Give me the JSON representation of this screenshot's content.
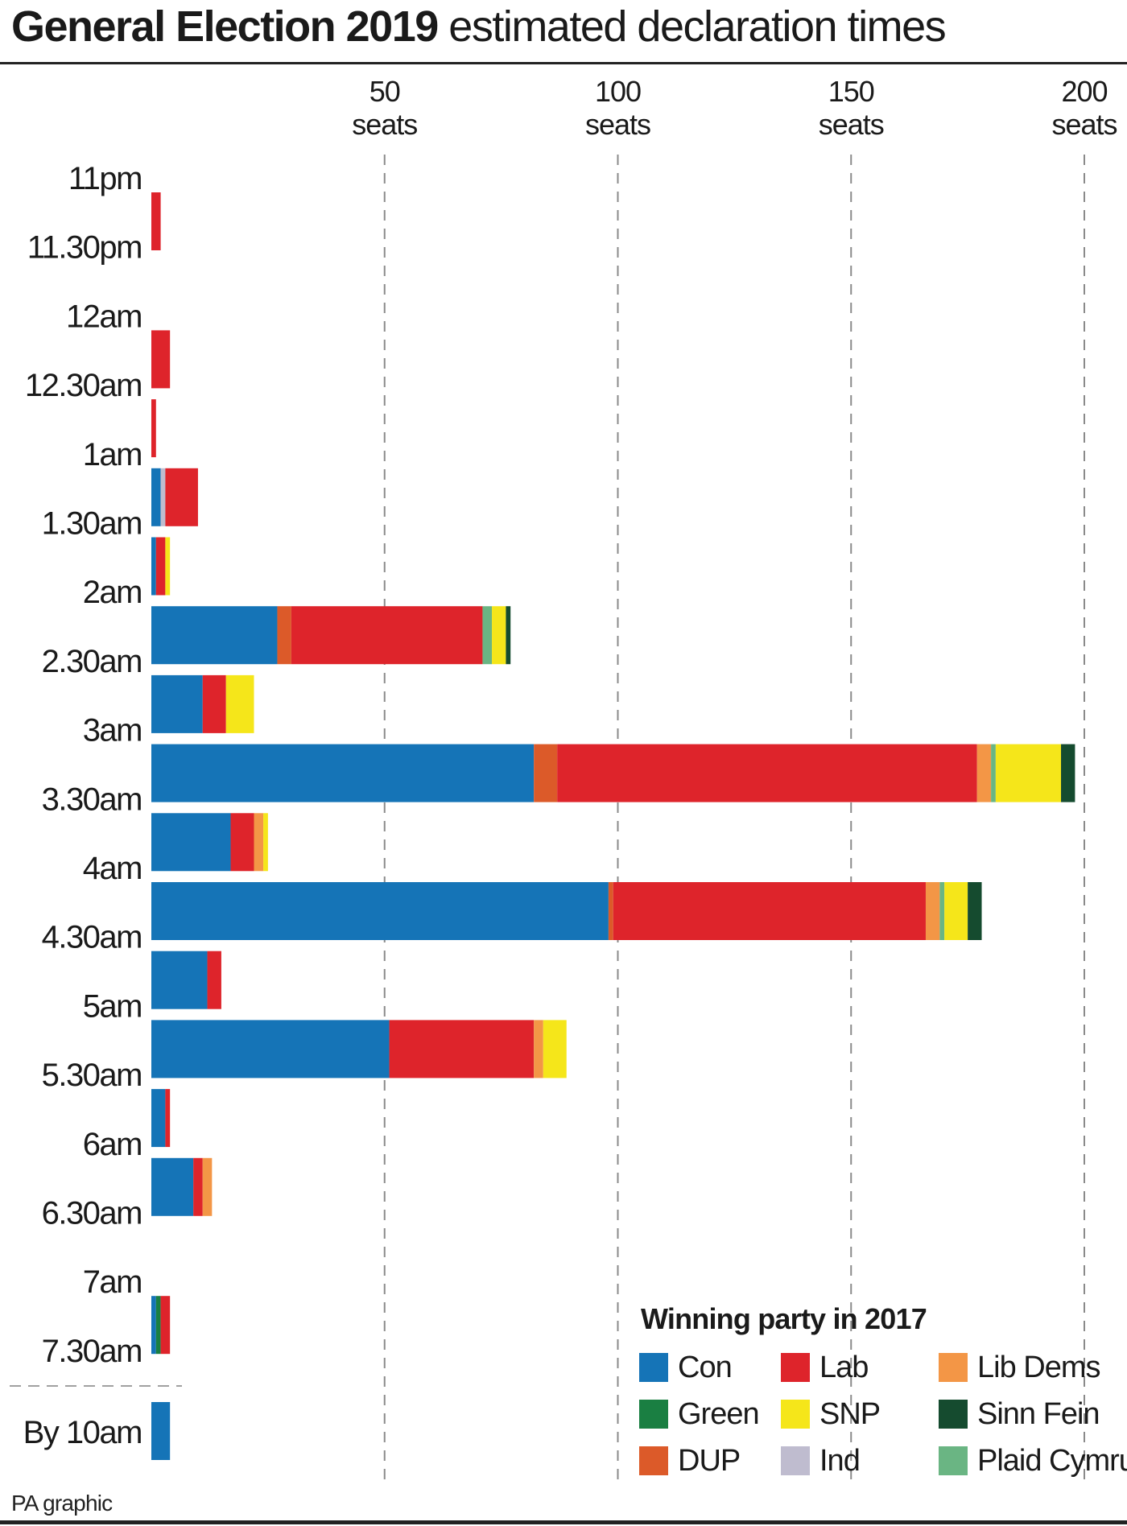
{
  "header": {
    "title_bold": "General Election 2019",
    "title_rest": "estimated declaration times"
  },
  "source": "PA graphic",
  "chart_data": {
    "type": "bar",
    "orientation": "horizontal",
    "stacked": true,
    "title": "General Election 2019 estimated declaration times",
    "xlabel": "seats",
    "xlim": [
      0,
      200
    ],
    "x_ticks": [
      {
        "value": 50,
        "line1": "50",
        "line2": "seats"
      },
      {
        "value": 100,
        "line1": "100",
        "line2": "seats"
      },
      {
        "value": 150,
        "line1": "150",
        "line2": "seats"
      },
      {
        "value": 200,
        "line1": "200",
        "line2": "seats"
      }
    ],
    "grid": "vertical dashed",
    "time_labels": [
      "11pm",
      "11.30pm",
      "12am",
      "12.30am",
      "1am",
      "1.30am",
      "2am",
      "2.30am",
      "3am",
      "3.30am",
      "4am",
      "4.30am",
      "5am",
      "5.30am",
      "6am",
      "6.30am",
      "7am",
      "7.30am"
    ],
    "final_label": "By 10am",
    "parties": [
      "Con",
      "Lab",
      "Lib Dems",
      "Green",
      "SNP",
      "Sinn Fein",
      "DUP",
      "Ind",
      "Plaid Cymru"
    ],
    "colors": {
      "Con": "#1574b7",
      "Lab": "#de242b",
      "Lib Dems": "#f39646",
      "Green": "#1a7f42",
      "SNP": "#f5e61a",
      "Sinn Fein": "#154b2f",
      "DUP": "#dc5a29",
      "Ind": "#bfbccf",
      "Plaid Cymru": "#6ab583"
    },
    "segment_order": [
      "Con",
      "Green",
      "Ind",
      "DUP",
      "Lab",
      "Lib Dems",
      "Plaid Cymru",
      "SNP",
      "Sinn Fein"
    ],
    "bars": [
      {
        "slot": "11pm-11.30pm",
        "slot_index": 0,
        "values": {
          "Lab": 2
        }
      },
      {
        "slot": "12am-12.30am",
        "slot_index": 2,
        "values": {
          "Lab": 4
        }
      },
      {
        "slot": "12.30am-1am",
        "slot_index": 3,
        "values": {
          "Lab": 1
        }
      },
      {
        "slot": "1am-1.30am",
        "slot_index": 4,
        "values": {
          "Con": 2,
          "Ind": 1,
          "Lab": 7
        }
      },
      {
        "slot": "1.30am-2am",
        "slot_index": 5,
        "values": {
          "Con": 1,
          "Lab": 2,
          "SNP": 1
        }
      },
      {
        "slot": "2am-2.30am",
        "slot_index": 6,
        "values": {
          "Con": 27,
          "DUP": 3,
          "Lab": 41,
          "Plaid Cymru": 2,
          "SNP": 3,
          "Sinn Fein": 1
        }
      },
      {
        "slot": "2.30am-3am",
        "slot_index": 7,
        "values": {
          "Con": 11,
          "Lab": 5,
          "SNP": 6
        }
      },
      {
        "slot": "3am-3.30am",
        "slot_index": 8,
        "values": {
          "Con": 82,
          "DUP": 5,
          "Lab": 90,
          "Lib Dems": 3,
          "Plaid Cymru": 1,
          "SNP": 14,
          "Sinn Fein": 3
        }
      },
      {
        "slot": "3.30am-4am",
        "slot_index": 9,
        "values": {
          "Con": 17,
          "Lab": 5,
          "Lib Dems": 2,
          "SNP": 1
        }
      },
      {
        "slot": "4am-4.30am",
        "slot_index": 10,
        "values": {
          "Con": 98,
          "DUP": 1,
          "Lab": 67,
          "Lib Dems": 3,
          "Plaid Cymru": 1,
          "SNP": 5,
          "Sinn Fein": 3
        }
      },
      {
        "slot": "4.30am-5am",
        "slot_index": 11,
        "values": {
          "Con": 12,
          "Lab": 3
        }
      },
      {
        "slot": "5am-5.30am",
        "slot_index": 12,
        "values": {
          "Con": 51,
          "Lab": 31,
          "Lib Dems": 2,
          "SNP": 5
        }
      },
      {
        "slot": "5.30am-6am",
        "slot_index": 13,
        "values": {
          "Con": 3,
          "Lab": 1
        }
      },
      {
        "slot": "6am-6.30am",
        "slot_index": 14,
        "values": {
          "Con": 9,
          "Lab": 2,
          "Lib Dems": 2
        }
      },
      {
        "slot": "7am-7.30am",
        "slot_index": 16,
        "values": {
          "Con": 1,
          "Green": 1,
          "Lab": 2
        }
      },
      {
        "slot": "By 10am",
        "slot_index": 18,
        "values": {
          "Con": 4
        }
      }
    ]
  },
  "legend": {
    "title": "Winning party in 2017",
    "items": [
      {
        "label": "Con",
        "color": "#1574b7"
      },
      {
        "label": "Lab",
        "color": "#de242b"
      },
      {
        "label": "Lib Dems",
        "color": "#f39646"
      },
      {
        "label": "Green",
        "color": "#1a7f42"
      },
      {
        "label": "SNP",
        "color": "#f5e61a"
      },
      {
        "label": "Sinn Fein",
        "color": "#154b2f"
      },
      {
        "label": "DUP",
        "color": "#dc5a29"
      },
      {
        "label": "Ind",
        "color": "#bfbccf"
      },
      {
        "label": "Plaid Cymru",
        "color": "#6ab583"
      }
    ]
  }
}
